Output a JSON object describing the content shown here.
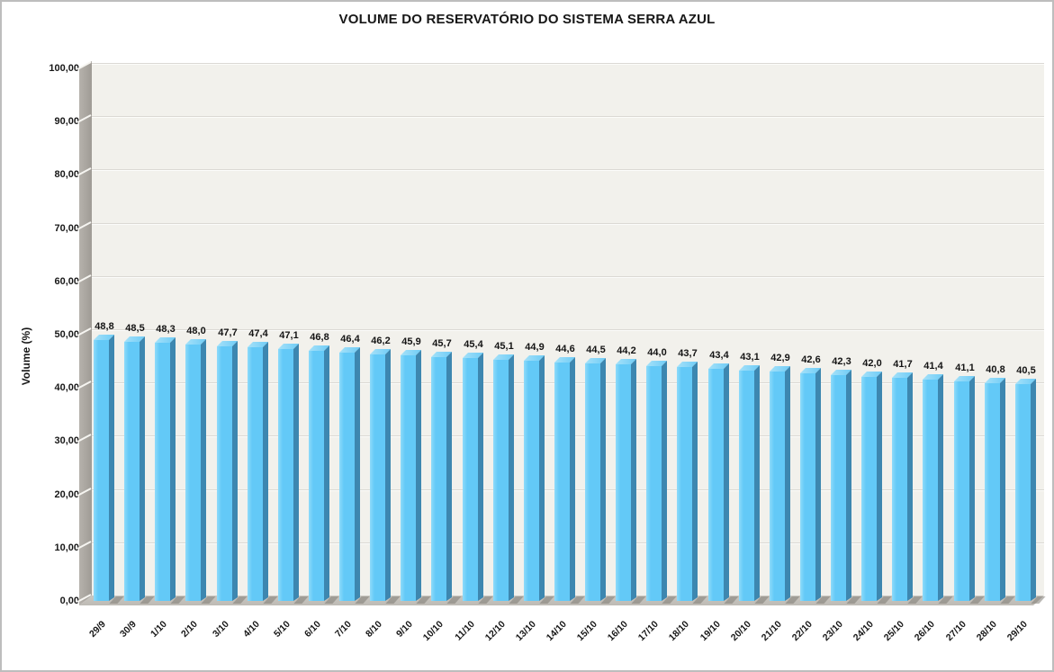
{
  "chart_data": {
    "type": "bar",
    "style": "3d-column",
    "title": "VOLUME DO RESERVATÓRIO DO SISTEMA SERRA AZUL",
    "xlabel": "",
    "ylabel": "Volume (%)",
    "ylim": [
      0,
      100
    ],
    "ytick_step": 10,
    "ytick_labels": [
      "0,00",
      "10,00",
      "20,00",
      "30,00",
      "40,00",
      "50,00",
      "60,00",
      "70,00",
      "80,00",
      "90,00",
      "100,00"
    ],
    "grid": true,
    "legend": false,
    "decimal_separator": ",",
    "categories": [
      "29/9",
      "30/9",
      "1/10",
      "2/10",
      "3/10",
      "4/10",
      "5/10",
      "6/10",
      "7/10",
      "8/10",
      "9/10",
      "10/10",
      "11/10",
      "12/10",
      "13/10",
      "14/10",
      "15/10",
      "16/10",
      "17/10",
      "18/10",
      "19/10",
      "20/10",
      "21/10",
      "22/10",
      "23/10",
      "24/10",
      "25/10",
      "26/10",
      "27/10",
      "28/10",
      "29/10"
    ],
    "values": [
      48.8,
      48.5,
      48.3,
      48.0,
      47.7,
      47.4,
      47.1,
      46.8,
      46.4,
      46.2,
      45.9,
      45.7,
      45.4,
      45.1,
      44.9,
      44.6,
      44.5,
      44.2,
      44.0,
      43.7,
      43.4,
      43.1,
      42.9,
      42.6,
      42.3,
      42.0,
      41.7,
      41.4,
      41.1,
      40.8,
      40.5
    ],
    "value_labels": [
      "48,8",
      "48,5",
      "48,3",
      "48,0",
      "47,7",
      "47,4",
      "47,1",
      "46,8",
      "46,4",
      "46,2",
      "45,9",
      "45,7",
      "45,4",
      "45,1",
      "44,9",
      "44,6",
      "44,5",
      "44,2",
      "44,0",
      "43,7",
      "43,4",
      "43,1",
      "42,9",
      "42,6",
      "42,3",
      "42,0",
      "41,7",
      "41,4",
      "41,1",
      "40,8",
      "40,5"
    ],
    "colors": {
      "bar_front": "#63c9f7",
      "bar_front_highlight": "#8edbfa",
      "bar_side": "#3d87b0",
      "bar_top_light": "#a5e1f9",
      "bar_top": "#6fccf6",
      "plot_bg": "#f2f1ec",
      "wall": "#a9a59f",
      "floor": "#c6c3bd",
      "gridline": "#dbd9d4",
      "text": "#171717"
    }
  }
}
